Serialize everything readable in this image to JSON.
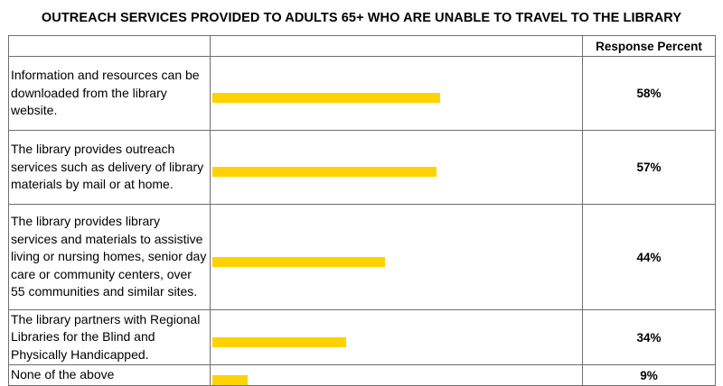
{
  "chart_data": {
    "type": "bar",
    "title": "OUTREACH SERVICES PROVIDED TO ADULTS 65+ WHO ARE UNABLE TO TRAVEL TO THE LIBRARY",
    "value_header": "Response Percent",
    "categories": [
      "Information and resources can be downloaded from the library website.",
      "The library provides outreach services such as delivery of library materials by mail or at home.",
      "The library provides library services and materials to assistive living or nursing homes, senior day care or community centers, over 55 communities and similar sites.",
      "The library partners with Regional Libraries for the Blind and Physically Handicapped.",
      "None of the above"
    ],
    "values": [
      58,
      57,
      44,
      34,
      9
    ],
    "value_labels": [
      "58%",
      "57%",
      "44%",
      "34%",
      "9%"
    ],
    "xlim": [
      0,
      100
    ],
    "bar_color": "#FFD200",
    "grid": false
  }
}
